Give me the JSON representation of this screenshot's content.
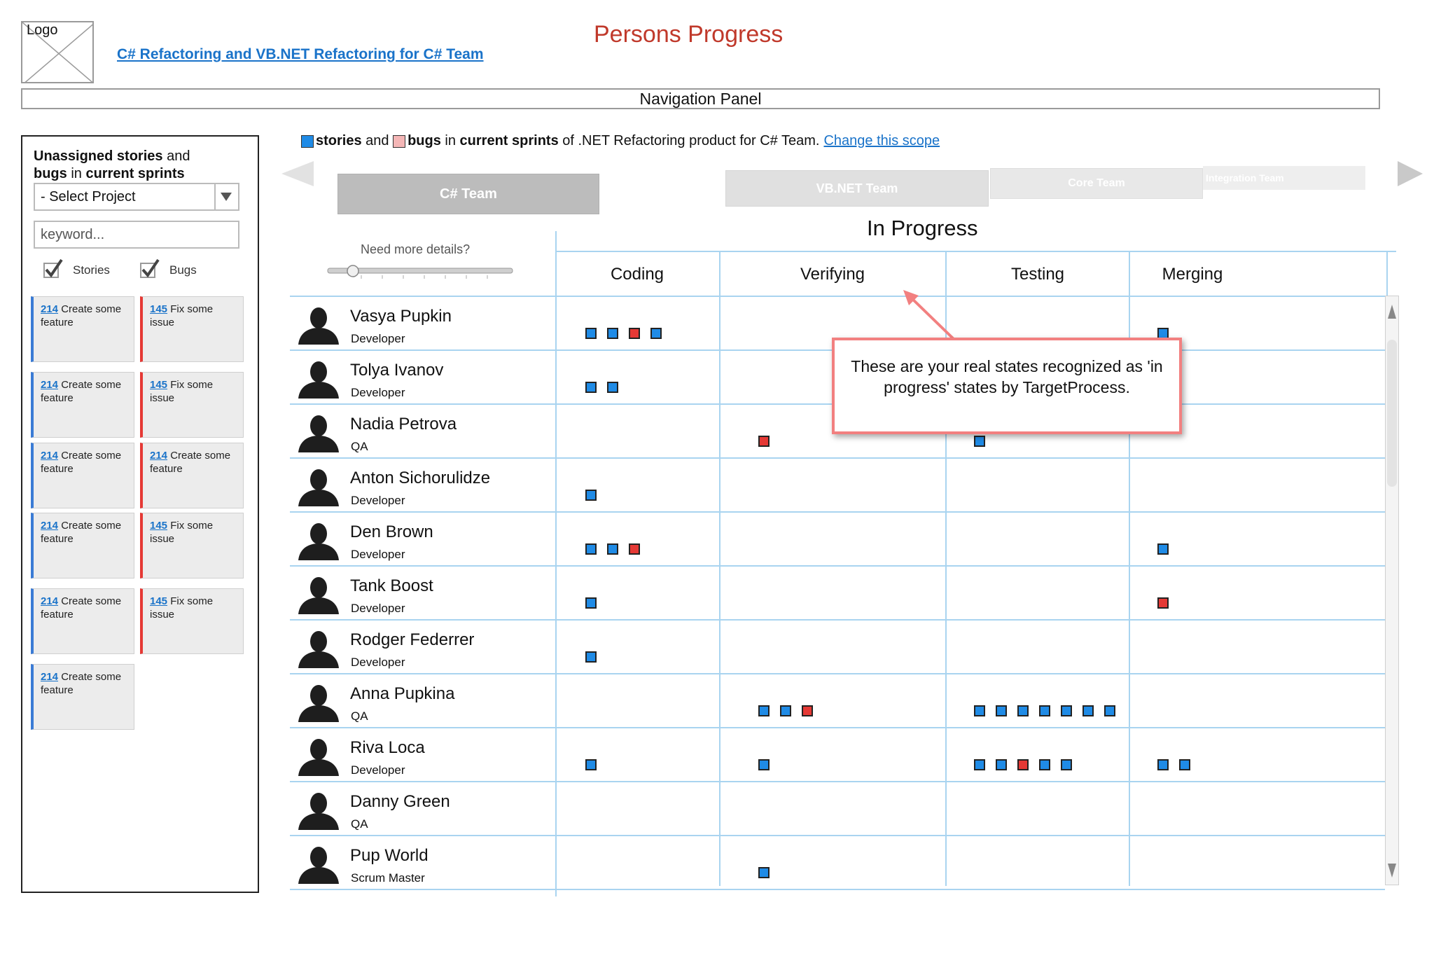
{
  "header": {
    "logo_label": "Logo",
    "project_link": "C# Refactoring and VB.NET Refactoring for C# Team",
    "page_title": "Persons Progress",
    "nav_panel": "Navigation Panel"
  },
  "left_panel": {
    "title_bold_1": "Unassigned stories",
    "title_mid": " and",
    "title_bold_2": "bugs",
    "title_mid_2": " in ",
    "title_bold_3": "current sprints",
    "select_value": "- Select Project",
    "keyword_placeholder": "keyword...",
    "checkbox_stories": "Stories",
    "checkbox_bugs": "Bugs",
    "cards": [
      {
        "id": "214",
        "text": " Create some feature",
        "kind": "story"
      },
      {
        "id": "145",
        "text": " Fix some issue",
        "kind": "bug"
      },
      {
        "id": "214",
        "text": " Create some feature",
        "kind": "story"
      },
      {
        "id": "145",
        "text": " Fix some issue",
        "kind": "bug"
      },
      {
        "id": "214",
        "text": " Create some feature",
        "kind": "story"
      },
      {
        "id": "214",
        "text": " Create some feature",
        "kind": "bug"
      },
      {
        "id": "214",
        "text": " Create some feature",
        "kind": "story"
      },
      {
        "id": "145",
        "text": " Fix some issue",
        "kind": "bug"
      },
      {
        "id": "214",
        "text": " Create some feature",
        "kind": "story"
      },
      {
        "id": "145",
        "text": " Fix some issue",
        "kind": "bug"
      },
      {
        "id": "214",
        "text": " Create some feature",
        "kind": "story"
      }
    ]
  },
  "legend": {
    "stories": "stories",
    "and": " and ",
    "bugs": "bugs",
    "in": " in ",
    "current_sprints": "current sprints",
    "rest": " of .NET Refactoring product for C# Team.",
    "change_scope": "Change this scope"
  },
  "tabs": [
    "C# Team",
    "VB.NET Team",
    "Core Team",
    "Integration Team"
  ],
  "board": {
    "group_title": "In Progress",
    "need_details": "Need more details?",
    "columns": [
      "Coding",
      "Verifying",
      "Testing",
      "Merging"
    ],
    "callout": "These are your real states recognized as 'in progress' states by TargetProcess."
  },
  "colors": {
    "story": "#1f8be6",
    "bug": "#e53935",
    "title": "#c0392b",
    "link": "#1a73c9",
    "grid": "#a9d4f0"
  },
  "people": [
    {
      "name": "Vasya Pupkin",
      "role": "Developer",
      "items": [
        [
          "s",
          "s",
          "b",
          "s"
        ],
        [],
        [],
        [
          "s"
        ]
      ]
    },
    {
      "name": "Tolya Ivanov",
      "role": "Developer",
      "items": [
        [
          "s",
          "s"
        ],
        [],
        [],
        [
          "s"
        ]
      ]
    },
    {
      "name": "Nadia Petrova",
      "role": "QA",
      "items": [
        [],
        [
          "b"
        ],
        [
          "s"
        ],
        []
      ]
    },
    {
      "name": "Anton Sichorulidze",
      "role": "Developer",
      "items": [
        [
          "s"
        ],
        [],
        [],
        []
      ]
    },
    {
      "name": "Den Brown",
      "role": "Developer",
      "items": [
        [
          "s",
          "s",
          "b"
        ],
        [],
        [],
        [
          "s"
        ]
      ]
    },
    {
      "name": "Tank Boost",
      "role": "Developer",
      "items": [
        [
          "s"
        ],
        [],
        [],
        [
          "b"
        ]
      ]
    },
    {
      "name": "Rodger Federrer",
      "role": "Developer",
      "items": [
        [
          "s"
        ],
        [],
        [],
        []
      ]
    },
    {
      "name": "Anna Pupkina",
      "role": "QA",
      "items": [
        [],
        [
          "s",
          "s",
          "b"
        ],
        [
          "s",
          "s",
          "s",
          "s",
          "s",
          "s",
          "s"
        ],
        []
      ]
    },
    {
      "name": "Riva Loca",
      "role": "Developer",
      "items": [
        [
          "s"
        ],
        [
          "s"
        ],
        [
          "s",
          "s",
          "b",
          "s",
          "s"
        ],
        [
          "s",
          "s"
        ]
      ]
    },
    {
      "name": "Danny Green",
      "role": "QA",
      "items": [
        [],
        [],
        [],
        []
      ]
    },
    {
      "name": "Pup World",
      "role": "Scrum Master",
      "items": [
        [],
        [
          "s"
        ],
        [],
        []
      ]
    }
  ]
}
